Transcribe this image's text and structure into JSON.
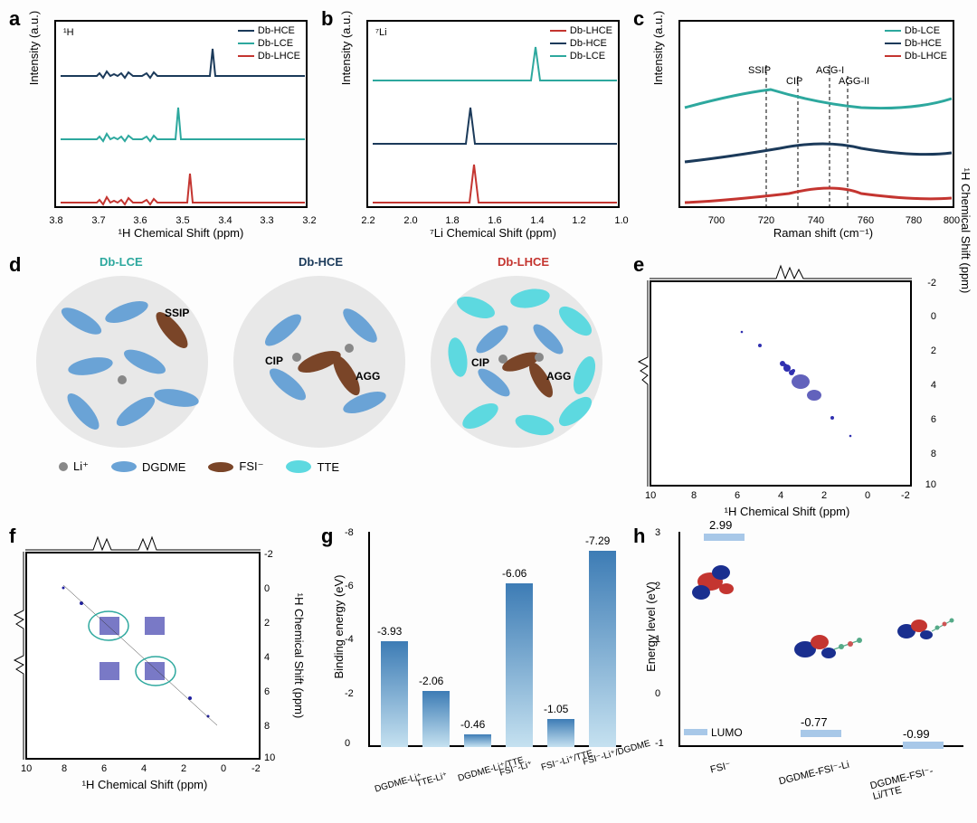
{
  "colors": {
    "red": "#c43530",
    "navy": "#1b3a5a",
    "teal": "#2da89e",
    "lightblue": "#6aa3d6",
    "brown": "#7a4528",
    "cyan": "#5dd9e0",
    "gray": "#888888",
    "bg_circle": "#e8e8e8",
    "bar_top": "#3d7cb5",
    "bar_bottom": "#c5e1f0",
    "lumo": "#a8c8e8"
  },
  "panel_a": {
    "label": "a",
    "inset": "¹H",
    "legend": [
      "Db-HCE",
      "Db-LCE",
      "Db-LHCE"
    ],
    "legend_colors": [
      "#1b3a5a",
      "#2da89e",
      "#c43530"
    ],
    "xlabel": "¹H Chemical Shift (ppm)",
    "ylabel": "Intensity (a.u.)",
    "xticks": [
      "3.8",
      "3.7",
      "3.6",
      "3.5",
      "3.4",
      "3.3",
      "3.2"
    ]
  },
  "panel_b": {
    "label": "b",
    "inset": "⁷Li",
    "legend": [
      "Db-LHCE",
      "Db-HCE",
      "Db-LCE"
    ],
    "legend_colors": [
      "#c43530",
      "#1b3a5a",
      "#2da89e"
    ],
    "xlabel": "⁷Li Chemical Shift (ppm)",
    "ylabel": "Intensity (a.u.)",
    "xticks": [
      "2.2",
      "2.0",
      "1.8",
      "1.6",
      "1.4",
      "1.2",
      "1.0"
    ]
  },
  "panel_c": {
    "label": "c",
    "legend": [
      "Db-LCE",
      "Db-HCE",
      "Db-LHCE"
    ],
    "legend_colors": [
      "#2da89e",
      "#1b3a5a",
      "#c43530"
    ],
    "xlabel": "Raman shift (cm⁻¹)",
    "ylabel": "Intensity (a.u.)",
    "xticks": [
      "700",
      "720",
      "740",
      "760",
      "780",
      "800"
    ],
    "annotations": [
      "SSIP",
      "CIP",
      "AGG-I",
      "AGG-II"
    ]
  },
  "panel_d": {
    "label": "d",
    "titles": [
      "Db-LCE",
      "Db-HCE",
      "Db-LHCE"
    ],
    "title_colors": [
      "#2da89e",
      "#1b3a5a",
      "#c43530"
    ],
    "cluster_labels": {
      "ssip": "SSIP",
      "cip": "CIP",
      "agg": "AGG"
    },
    "legend": [
      {
        "label": "Li⁺",
        "shape": "circle",
        "color": "#888888"
      },
      {
        "label": "DGDME",
        "shape": "ellipse",
        "color": "#6aa3d6"
      },
      {
        "label": "FSI⁻",
        "shape": "ellipse",
        "color": "#7a4528"
      },
      {
        "label": "TTE",
        "shape": "ellipse",
        "color": "#5dd9e0"
      }
    ]
  },
  "panel_e": {
    "label": "e",
    "xlabel": "¹H Chemical Shift (ppm)",
    "ylabel": "¹H Chemical Shift (ppm)",
    "ticks": [
      "10",
      "8",
      "6",
      "4",
      "2",
      "0",
      "-2"
    ]
  },
  "panel_f": {
    "label": "f",
    "xlabel": "¹H Chemical Shift (ppm)",
    "ylabel": "¹H Chemical Shift (ppm)",
    "ticks": [
      "10",
      "8",
      "6",
      "4",
      "2",
      "0",
      "-2"
    ]
  },
  "panel_g": {
    "label": "g",
    "ylabel": "Binding energy (eV)",
    "yticks": [
      "0",
      "-2",
      "-4",
      "-6",
      "-8"
    ],
    "bars": [
      {
        "label": "DGDME-Li⁺",
        "value": -3.93,
        "h": 0.49,
        "display": "-3.93"
      },
      {
        "label": "TTE-Li⁺",
        "value": -2.06,
        "h": 0.26,
        "display": "-2.06"
      },
      {
        "label": "DGDME-Li⁺/TTE",
        "value": -0.46,
        "h": 0.058,
        "display": "-0.46"
      },
      {
        "label": "FSI⁻-Li⁺",
        "value": -6.06,
        "h": 0.76,
        "display": "-6.06"
      },
      {
        "label": "FSI⁻-Li⁺/TTE",
        "value": -1.05,
        "h": 0.13,
        "display": "-1.05"
      },
      {
        "label": "FSI⁻-Li⁺/DGDME",
        "value": -7.29,
        "h": 0.91,
        "display": "-7.29"
      }
    ]
  },
  "panel_h": {
    "label": "h",
    "ylabel": "Energy level (eV)",
    "yticks": [
      "-1",
      "0",
      "1",
      "2",
      "3"
    ],
    "items": [
      {
        "label": "FSI⁻",
        "value": "2.99"
      },
      {
        "label": "DGDME-FSI⁻-Li",
        "value": "-0.77"
      },
      {
        "label": "DGDME-FSI⁻-Li/TTE",
        "value": "-0.99"
      }
    ],
    "lumo": "LUMO"
  }
}
